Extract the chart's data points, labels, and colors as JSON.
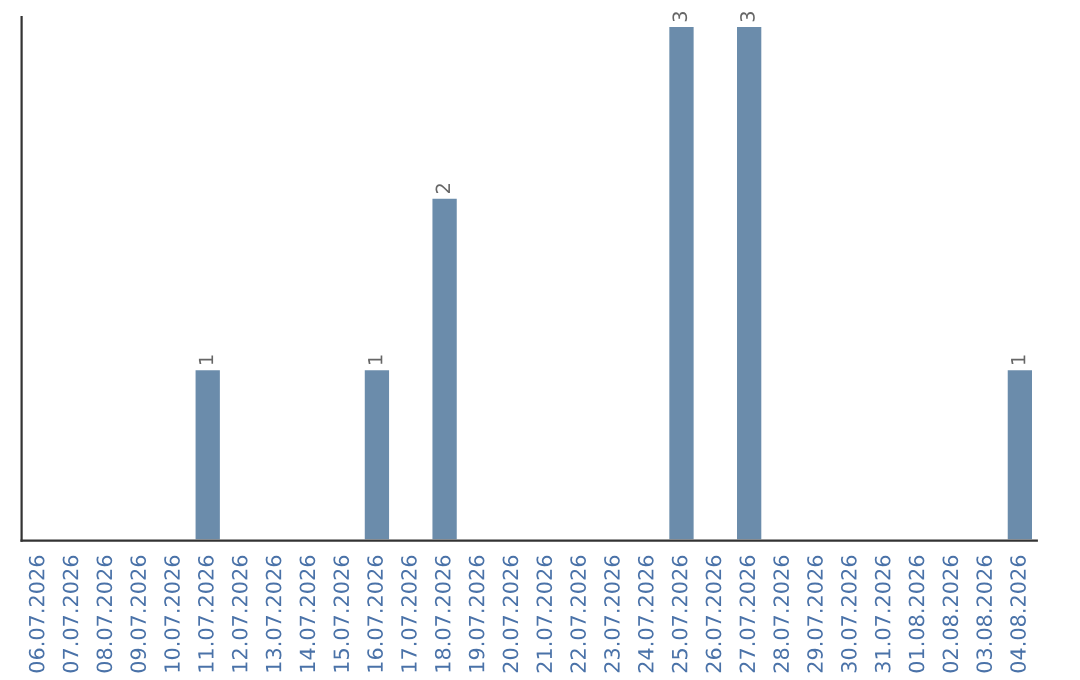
{
  "chart_data": {
    "type": "bar",
    "categories": [
      "06.07.2026",
      "07.07.2026",
      "08.07.2026",
      "09.07.2026",
      "10.07.2026",
      "11.07.2026",
      "12.07.2026",
      "13.07.2026",
      "14.07.2026",
      "15.07.2026",
      "16.07.2026",
      "17.07.2026",
      "18.07.2026",
      "19.07.2026",
      "20.07.2026",
      "21.07.2026",
      "22.07.2026",
      "23.07.2026",
      "24.07.2026",
      "25.07.2026",
      "26.07.2026",
      "27.07.2026",
      "28.07.2026",
      "29.07.2026",
      "30.07.2026",
      "31.07.2026",
      "01.08.2026",
      "02.08.2026",
      "03.08.2026",
      "04.08.2026"
    ],
    "values": [
      null,
      null,
      null,
      null,
      null,
      1,
      null,
      null,
      null,
      null,
      1,
      null,
      2,
      null,
      null,
      null,
      null,
      null,
      null,
      3,
      null,
      3,
      null,
      null,
      null,
      null,
      null,
      null,
      null,
      1
    ],
    "data_labels": true,
    "color": "#6b8cab",
    "ylim": [
      0,
      3.05
    ],
    "tick_labels": "x",
    "grid": false,
    "legend": false
  }
}
